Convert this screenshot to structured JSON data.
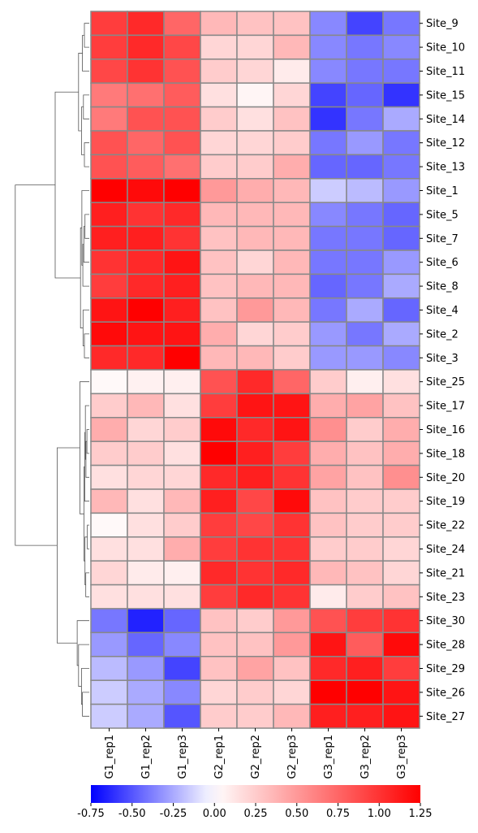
{
  "chart_data": {
    "type": "heatmap",
    "title": "",
    "xlabel": "",
    "ylabel": "",
    "colormap": "bwr",
    "vmin": -0.75,
    "vmax": 1.25,
    "colorbar_ticks": [
      "-0.75",
      "-0.50",
      "-0.25",
      "0.00",
      "0.25",
      "0.50",
      "0.75",
      "1.00",
      "1.25"
    ],
    "colorbar_tick_values": [
      -0.75,
      -0.5,
      -0.25,
      0.0,
      0.25,
      0.5,
      0.75,
      1.0,
      1.25
    ],
    "columns": [
      "G1_rep1",
      "G1_rep2",
      "G1_rep3",
      "G2_rep1",
      "G2_rep2",
      "G2_rep3",
      "G3_rep1",
      "G3_rep2",
      "G3_rep3"
    ],
    "rows": [
      "Site_9",
      "Site_10",
      "Site_11",
      "Site_15",
      "Site_14",
      "Site_12",
      "Site_13",
      "Site_1",
      "Site_5",
      "Site_7",
      "Site_6",
      "Site_8",
      "Site_4",
      "Site_2",
      "Site_3",
      "Site_25",
      "Site_17",
      "Site_16",
      "Site_18",
      "Site_20",
      "Site_19",
      "Site_22",
      "Site_24",
      "Site_21",
      "Site_23",
      "Site_30",
      "Site_28",
      "Site_29",
      "Site_26",
      "Site_27"
    ],
    "values": [
      [
        0.95,
        1.05,
        0.75,
        0.35,
        0.3,
        0.3,
        -0.35,
        -0.55,
        -0.4
      ],
      [
        0.95,
        1.05,
        0.9,
        0.2,
        0.2,
        0.35,
        -0.35,
        -0.4,
        -0.35
      ],
      [
        0.9,
        1.0,
        0.85,
        0.25,
        0.2,
        0.1,
        -0.35,
        -0.4,
        -0.4
      ],
      [
        0.65,
        0.7,
        0.8,
        0.15,
        0.05,
        0.2,
        -0.55,
        -0.45,
        -0.6
      ],
      [
        0.65,
        0.85,
        0.85,
        0.25,
        0.15,
        0.3,
        -0.6,
        -0.4,
        -0.25
      ],
      [
        0.85,
        0.75,
        0.85,
        0.2,
        0.2,
        0.25,
        -0.4,
        -0.3,
        -0.4
      ],
      [
        0.85,
        0.8,
        0.7,
        0.25,
        0.25,
        0.4,
        -0.45,
        -0.45,
        -0.4
      ],
      [
        1.25,
        1.2,
        1.25,
        0.5,
        0.4,
        0.35,
        -0.15,
        -0.2,
        -0.3
      ],
      [
        1.1,
        1.0,
        1.05,
        0.35,
        0.35,
        0.35,
        -0.35,
        -0.4,
        -0.45
      ],
      [
        1.1,
        1.1,
        1.0,
        0.3,
        0.35,
        0.35,
        -0.4,
        -0.4,
        -0.45
      ],
      [
        1.0,
        1.05,
        1.15,
        0.3,
        0.2,
        0.35,
        -0.4,
        -0.4,
        -0.3
      ],
      [
        0.95,
        1.05,
        1.1,
        0.3,
        0.35,
        0.35,
        -0.45,
        -0.4,
        -0.25
      ],
      [
        1.15,
        1.25,
        1.1,
        0.3,
        0.5,
        0.35,
        -0.4,
        -0.25,
        -0.45
      ],
      [
        1.2,
        1.15,
        1.15,
        0.4,
        0.2,
        0.25,
        -0.3,
        -0.4,
        -0.25
      ],
      [
        1.05,
        1.05,
        1.25,
        0.35,
        0.35,
        0.25,
        -0.3,
        -0.3,
        -0.35
      ],
      [
        0.03,
        0.07,
        0.08,
        0.85,
        1.05,
        0.75,
        0.25,
        0.08,
        0.15
      ],
      [
        0.25,
        0.35,
        0.15,
        0.95,
        1.15,
        1.15,
        0.4,
        0.45,
        0.3
      ],
      [
        0.4,
        0.2,
        0.25,
        1.2,
        1.05,
        1.15,
        0.55,
        0.25,
        0.4
      ],
      [
        0.25,
        0.25,
        0.15,
        1.25,
        1.1,
        0.95,
        0.4,
        0.3,
        0.4
      ],
      [
        0.15,
        0.2,
        0.2,
        1.05,
        1.1,
        1.0,
        0.45,
        0.3,
        0.55
      ],
      [
        0.35,
        0.15,
        0.35,
        1.1,
        0.9,
        1.2,
        0.3,
        0.25,
        0.25
      ],
      [
        0.03,
        0.15,
        0.25,
        0.95,
        0.9,
        1.0,
        0.3,
        0.25,
        0.25
      ],
      [
        0.15,
        0.15,
        0.4,
        0.95,
        1.0,
        1.0,
        0.25,
        0.25,
        0.2
      ],
      [
        0.2,
        0.1,
        0.08,
        1.05,
        1.0,
        1.05,
        0.35,
        0.3,
        0.2
      ],
      [
        0.15,
        0.15,
        0.15,
        0.95,
        1.05,
        1.0,
        0.1,
        0.25,
        0.3
      ],
      [
        -0.4,
        -0.65,
        -0.45,
        0.3,
        0.25,
        0.5,
        0.85,
        0.95,
        1.0
      ],
      [
        -0.3,
        -0.45,
        -0.35,
        0.3,
        0.3,
        0.5,
        1.15,
        0.8,
        1.2
      ],
      [
        -0.2,
        -0.3,
        -0.55,
        0.3,
        0.45,
        0.3,
        1.05,
        1.1,
        0.95
      ],
      [
        -0.15,
        -0.25,
        -0.35,
        0.2,
        0.25,
        0.2,
        1.25,
        1.25,
        1.15
      ],
      [
        -0.15,
        -0.25,
        -0.5,
        0.25,
        0.25,
        0.35,
        1.1,
        1.1,
        1.15
      ]
    ],
    "row_dendrogram": true,
    "legend": "colorbar-bottom",
    "grid": false
  }
}
